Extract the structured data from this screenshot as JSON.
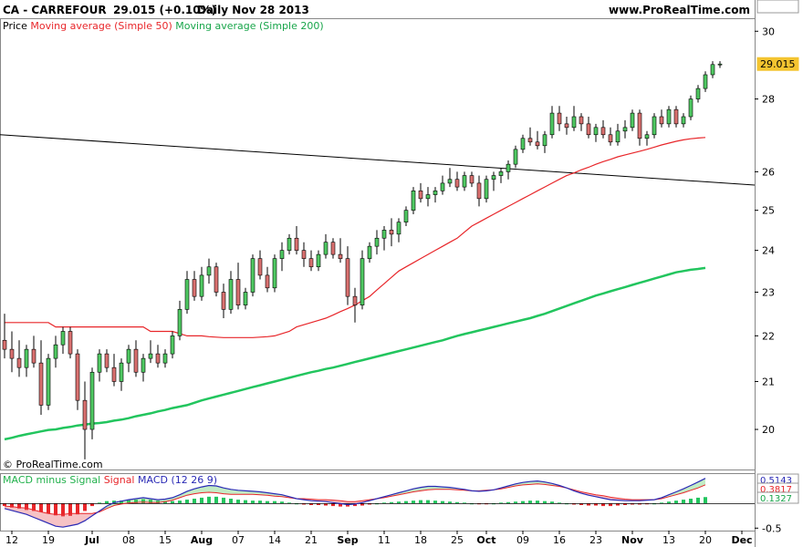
{
  "header": {
    "symbol_info": "CA - CARREFOUR",
    "price_change": "29.015 (+0.10%)",
    "period_date": "Daily  Nov 28 2013",
    "site": "www.ProRealTime.com"
  },
  "legend": {
    "price_label": "Price",
    "ma50_label": "Moving average (Simple 50)",
    "ma200_label": "Moving average (Simple 200)",
    "copyright": "© ProRealTime.com",
    "colors": {
      "ma50": "#e8262a",
      "ma200": "#22c55e",
      "up": "#4fc862",
      "down": "#d9706f"
    }
  },
  "macd_legend": {
    "hist_label": "MACD minus Signal",
    "signal_label": "Signal",
    "macd_label": "MACD (12 26 9)"
  },
  "chart_data": [
    {
      "type": "candlestick",
      "ylim": [
        19.2,
        30.4
      ],
      "scale": "log",
      "yticks": [
        "30",
        "28",
        "26",
        "25",
        "24",
        "23",
        "22",
        "21",
        "20"
      ],
      "price_badges": {
        "last": "29.015",
        "ma50": "26.925",
        "ma200": "23.574"
      },
      "xticks": [
        "12",
        "19",
        "Jul",
        "08",
        "15",
        "Aug",
        "07",
        "14",
        "21",
        "Sep",
        "11",
        "18",
        "25",
        "Oct",
        "09",
        "16",
        "23",
        "Nov",
        "13",
        "20",
        "Dec"
      ],
      "candles": [
        [
          21.9,
          22.5,
          21.5,
          21.7
        ],
        [
          21.7,
          22.1,
          21.2,
          21.5
        ],
        [
          21.5,
          21.9,
          21.1,
          21.3
        ],
        [
          21.3,
          21.8,
          21.1,
          21.7
        ],
        [
          21.7,
          22.0,
          21.3,
          21.4
        ],
        [
          21.4,
          21.9,
          20.3,
          20.5
        ],
        [
          20.5,
          21.6,
          20.4,
          21.5
        ],
        [
          21.5,
          22.0,
          21.3,
          21.8
        ],
        [
          21.8,
          22.2,
          21.6,
          22.1
        ],
        [
          22.1,
          22.2,
          21.5,
          21.6
        ],
        [
          21.6,
          21.7,
          20.4,
          20.6
        ],
        [
          20.6,
          21.0,
          19.4,
          20.0
        ],
        [
          20.0,
          21.3,
          19.8,
          21.2
        ],
        [
          21.2,
          21.7,
          21.0,
          21.6
        ],
        [
          21.6,
          21.7,
          21.2,
          21.3
        ],
        [
          21.3,
          21.6,
          20.9,
          21.0
        ],
        [
          21.0,
          21.5,
          20.8,
          21.4
        ],
        [
          21.4,
          21.8,
          21.2,
          21.7
        ],
        [
          21.7,
          21.9,
          21.1,
          21.2
        ],
        [
          21.2,
          21.6,
          21.0,
          21.5
        ],
        [
          21.5,
          21.9,
          21.4,
          21.6
        ],
        [
          21.6,
          21.8,
          21.3,
          21.4
        ],
        [
          21.4,
          21.7,
          21.3,
          21.6
        ],
        [
          21.6,
          22.1,
          21.5,
          22.0
        ],
        [
          22.0,
          22.8,
          21.9,
          22.6
        ],
        [
          22.6,
          23.5,
          22.5,
          23.3
        ],
        [
          23.3,
          23.5,
          22.8,
          22.9
        ],
        [
          22.9,
          23.6,
          22.8,
          23.4
        ],
        [
          23.4,
          23.8,
          23.2,
          23.6
        ],
        [
          23.6,
          23.7,
          22.9,
          23.0
        ],
        [
          23.0,
          23.2,
          22.4,
          22.6
        ],
        [
          22.6,
          23.5,
          22.5,
          23.3
        ],
        [
          23.3,
          23.7,
          22.6,
          22.7
        ],
        [
          22.7,
          23.1,
          22.6,
          23.0
        ],
        [
          23.0,
          23.9,
          22.9,
          23.8
        ],
        [
          23.8,
          24.0,
          23.3,
          23.4
        ],
        [
          23.4,
          23.6,
          23.0,
          23.1
        ],
        [
          23.1,
          23.9,
          23.0,
          23.8
        ],
        [
          23.8,
          24.2,
          23.5,
          24.0
        ],
        [
          24.0,
          24.4,
          23.9,
          24.3
        ],
        [
          24.3,
          24.6,
          23.9,
          24.0
        ],
        [
          24.0,
          24.2,
          23.6,
          23.8
        ],
        [
          23.8,
          24.0,
          23.5,
          23.6
        ],
        [
          23.6,
          24.0,
          23.5,
          23.9
        ],
        [
          23.9,
          24.4,
          23.8,
          24.2
        ],
        [
          24.2,
          24.3,
          23.8,
          23.9
        ],
        [
          23.9,
          24.3,
          23.7,
          23.8
        ],
        [
          23.8,
          24.1,
          22.7,
          22.9
        ],
        [
          22.9,
          23.1,
          22.3,
          22.7
        ],
        [
          22.7,
          24.0,
          22.6,
          23.8
        ],
        [
          23.8,
          24.2,
          23.7,
          24.1
        ],
        [
          24.1,
          24.5,
          23.9,
          24.3
        ],
        [
          24.3,
          24.6,
          24.0,
          24.5
        ],
        [
          24.5,
          24.8,
          24.1,
          24.4
        ],
        [
          24.4,
          24.8,
          24.2,
          24.7
        ],
        [
          24.7,
          25.1,
          24.6,
          25.0
        ],
        [
          25.0,
          25.6,
          24.9,
          25.5
        ],
        [
          25.5,
          25.7,
          25.2,
          25.3
        ],
        [
          25.3,
          25.6,
          25.1,
          25.4
        ],
        [
          25.4,
          25.6,
          25.2,
          25.5
        ],
        [
          25.5,
          25.9,
          25.4,
          25.7
        ],
        [
          25.7,
          26.1,
          25.6,
          25.8
        ],
        [
          25.8,
          26.0,
          25.5,
          25.6
        ],
        [
          25.6,
          26.0,
          25.5,
          25.9
        ],
        [
          25.9,
          26.0,
          25.6,
          25.7
        ],
        [
          25.7,
          25.9,
          25.1,
          25.3
        ],
        [
          25.3,
          25.9,
          25.2,
          25.8
        ],
        [
          25.8,
          26.0,
          25.5,
          25.9
        ],
        [
          25.9,
          26.1,
          25.7,
          26.0
        ],
        [
          26.0,
          26.3,
          25.8,
          26.2
        ],
        [
          26.2,
          26.7,
          26.1,
          26.6
        ],
        [
          26.6,
          27.0,
          26.5,
          26.9
        ],
        [
          26.9,
          27.2,
          26.7,
          26.8
        ],
        [
          26.8,
          27.1,
          26.6,
          26.7
        ],
        [
          26.7,
          27.1,
          26.5,
          27.0
        ],
        [
          27.0,
          27.8,
          26.9,
          27.6
        ],
        [
          27.6,
          27.8,
          27.1,
          27.3
        ],
        [
          27.3,
          27.5,
          27.0,
          27.2
        ],
        [
          27.2,
          27.8,
          27.1,
          27.5
        ],
        [
          27.5,
          27.6,
          27.1,
          27.3
        ],
        [
          27.3,
          27.5,
          26.9,
          27.0
        ],
        [
          27.0,
          27.3,
          26.8,
          27.2
        ],
        [
          27.2,
          27.4,
          26.9,
          27.0
        ],
        [
          27.0,
          27.2,
          26.7,
          26.8
        ],
        [
          26.8,
          27.3,
          26.7,
          27.1
        ],
        [
          27.1,
          27.4,
          26.9,
          27.2
        ],
        [
          27.2,
          27.7,
          27.1,
          27.6
        ],
        [
          27.6,
          27.7,
          26.7,
          26.9
        ],
        [
          26.9,
          27.1,
          26.7,
          27.0
        ],
        [
          27.0,
          27.6,
          26.9,
          27.5
        ],
        [
          27.5,
          27.7,
          27.2,
          27.3
        ],
        [
          27.3,
          27.8,
          27.2,
          27.7
        ],
        [
          27.7,
          27.8,
          27.2,
          27.3
        ],
        [
          27.3,
          27.6,
          27.2,
          27.5
        ],
        [
          27.5,
          28.1,
          27.4,
          28.0
        ],
        [
          28.0,
          28.4,
          27.9,
          28.3
        ],
        [
          28.3,
          28.8,
          28.2,
          28.7
        ],
        [
          28.7,
          29.1,
          28.6,
          29.0
        ],
        [
          29.0,
          29.1,
          28.9,
          29.015
        ]
      ],
      "ma50": [
        22.3,
        22.3,
        22.3,
        22.3,
        22.3,
        22.3,
        22.3,
        22.2,
        22.2,
        22.2,
        22.2,
        22.2,
        22.2,
        22.2,
        22.2,
        22.2,
        22.2,
        22.2,
        22.2,
        22.2,
        22.1,
        22.1,
        22.1,
        22.1,
        22.05,
        22.0,
        22.0,
        22.0,
        21.98,
        21.97,
        21.96,
        21.96,
        21.96,
        21.96,
        21.96,
        21.97,
        21.98,
        22.0,
        22.05,
        22.1,
        22.2,
        22.25,
        22.3,
        22.35,
        22.4,
        22.47,
        22.55,
        22.62,
        22.7,
        22.8,
        22.9,
        23.05,
        23.2,
        23.35,
        23.5,
        23.6,
        23.7,
        23.8,
        23.9,
        24.0,
        24.1,
        24.2,
        24.3,
        24.45,
        24.6,
        24.7,
        24.8,
        24.9,
        25.0,
        25.1,
        25.2,
        25.3,
        25.4,
        25.5,
        25.6,
        25.7,
        25.8,
        25.9,
        25.97,
        26.05,
        26.12,
        26.2,
        26.27,
        26.33,
        26.4,
        26.45,
        26.5,
        26.55,
        26.6,
        26.66,
        26.72,
        26.77,
        26.82,
        26.86,
        26.89,
        26.91,
        26.925
      ],
      "ma200": [
        19.8,
        19.83,
        19.87,
        19.9,
        19.93,
        19.96,
        19.99,
        20.0,
        20.03,
        20.05,
        20.08,
        20.1,
        20.12,
        20.13,
        20.15,
        20.18,
        20.2,
        20.23,
        20.27,
        20.3,
        20.33,
        20.37,
        20.4,
        20.44,
        20.47,
        20.5,
        20.55,
        20.6,
        20.64,
        20.68,
        20.72,
        20.76,
        20.8,
        20.84,
        20.88,
        20.92,
        20.96,
        21.0,
        21.04,
        21.08,
        21.12,
        21.16,
        21.2,
        21.23,
        21.27,
        21.3,
        21.34,
        21.38,
        21.42,
        21.46,
        21.5,
        21.54,
        21.58,
        21.62,
        21.66,
        21.7,
        21.74,
        21.78,
        21.82,
        21.86,
        21.9,
        21.95,
        22.0,
        22.04,
        22.08,
        22.12,
        22.16,
        22.2,
        22.24,
        22.28,
        22.32,
        22.36,
        22.4,
        22.45,
        22.5,
        22.56,
        22.62,
        22.68,
        22.74,
        22.8,
        22.86,
        22.92,
        22.97,
        23.02,
        23.07,
        23.12,
        23.17,
        23.22,
        23.27,
        23.32,
        23.37,
        23.42,
        23.47,
        23.5,
        23.53,
        23.55,
        23.574
      ],
      "trendline": {
        "start": 27.0,
        "end": 25.65
      }
    },
    {
      "type": "macd",
      "ylim": [
        -0.55,
        0.62
      ],
      "yticks": [
        "-0.5"
      ],
      "badges": {
        "macd": "0.5143",
        "signal": "0.3817",
        "hist": "0.1327"
      },
      "hist": [
        -0.05,
        -0.08,
        -0.1,
        -0.13,
        -0.15,
        -0.17,
        -0.2,
        -0.24,
        -0.26,
        -0.25,
        -0.22,
        -0.15,
        -0.05,
        0.02,
        0.05,
        0.06,
        0.06,
        0.07,
        0.08,
        0.09,
        0.08,
        0.06,
        0.05,
        0.05,
        0.06,
        0.08,
        0.1,
        0.12,
        0.14,
        0.14,
        0.12,
        0.1,
        0.08,
        0.07,
        0.06,
        0.06,
        0.05,
        0.05,
        0.04,
        0.02,
        0.0,
        -0.02,
        -0.03,
        -0.03,
        -0.04,
        -0.05,
        -0.06,
        -0.06,
        -0.05,
        -0.04,
        -0.02,
        0.0,
        0.02,
        0.03,
        0.04,
        0.05,
        0.06,
        0.07,
        0.07,
        0.06,
        0.05,
        0.04,
        0.03,
        0.02,
        0.0,
        -0.01,
        -0.01,
        0.0,
        0.02,
        0.03,
        0.04,
        0.05,
        0.06,
        0.06,
        0.05,
        0.04,
        0.02,
        0.0,
        -0.02,
        -0.03,
        -0.04,
        -0.04,
        -0.05,
        -0.05,
        -0.04,
        -0.03,
        -0.02,
        -0.02,
        -0.01,
        0.0,
        0.02,
        0.04,
        0.06,
        0.08,
        0.1,
        0.12,
        0.1327
      ],
      "macd": [
        -0.1,
        -0.14,
        -0.18,
        -0.22,
        -0.28,
        -0.34,
        -0.4,
        -0.46,
        -0.48,
        -0.45,
        -0.42,
        -0.35,
        -0.25,
        -0.15,
        -0.05,
        0.02,
        0.05,
        0.08,
        0.1,
        0.12,
        0.1,
        0.08,
        0.09,
        0.12,
        0.18,
        0.25,
        0.3,
        0.34,
        0.37,
        0.36,
        0.32,
        0.29,
        0.27,
        0.26,
        0.25,
        0.24,
        0.22,
        0.2,
        0.18,
        0.14,
        0.1,
        0.08,
        0.06,
        0.05,
        0.04,
        0.02,
        0.0,
        -0.02,
        -0.01,
        0.02,
        0.06,
        0.1,
        0.14,
        0.18,
        0.22,
        0.26,
        0.3,
        0.33,
        0.35,
        0.35,
        0.34,
        0.33,
        0.31,
        0.29,
        0.26,
        0.25,
        0.26,
        0.28,
        0.32,
        0.36,
        0.4,
        0.43,
        0.45,
        0.46,
        0.44,
        0.41,
        0.37,
        0.32,
        0.26,
        0.21,
        0.17,
        0.14,
        0.11,
        0.08,
        0.07,
        0.06,
        0.06,
        0.06,
        0.07,
        0.08,
        0.12,
        0.18,
        0.24,
        0.3,
        0.37,
        0.44,
        0.5143
      ],
      "signal": [
        -0.05,
        -0.06,
        -0.08,
        -0.09,
        -0.13,
        -0.17,
        -0.2,
        -0.22,
        -0.22,
        -0.2,
        -0.2,
        -0.2,
        -0.2,
        -0.17,
        -0.1,
        -0.04,
        -0.01,
        0.01,
        0.02,
        0.03,
        0.02,
        0.02,
        0.04,
        0.07,
        0.12,
        0.17,
        0.2,
        0.22,
        0.23,
        0.22,
        0.2,
        0.19,
        0.19,
        0.19,
        0.19,
        0.18,
        0.17,
        0.15,
        0.14,
        0.12,
        0.1,
        0.1,
        0.09,
        0.08,
        0.08,
        0.07,
        0.06,
        0.04,
        0.04,
        0.06,
        0.08,
        0.1,
        0.12,
        0.15,
        0.18,
        0.21,
        0.24,
        0.26,
        0.28,
        0.29,
        0.29,
        0.29,
        0.28,
        0.27,
        0.26,
        0.26,
        0.27,
        0.28,
        0.3,
        0.33,
        0.36,
        0.38,
        0.39,
        0.4,
        0.39,
        0.37,
        0.35,
        0.32,
        0.28,
        0.24,
        0.21,
        0.18,
        0.16,
        0.13,
        0.11,
        0.09,
        0.08,
        0.08,
        0.08,
        0.08,
        0.1,
        0.14,
        0.18,
        0.22,
        0.27,
        0.32,
        0.3817
      ]
    }
  ]
}
